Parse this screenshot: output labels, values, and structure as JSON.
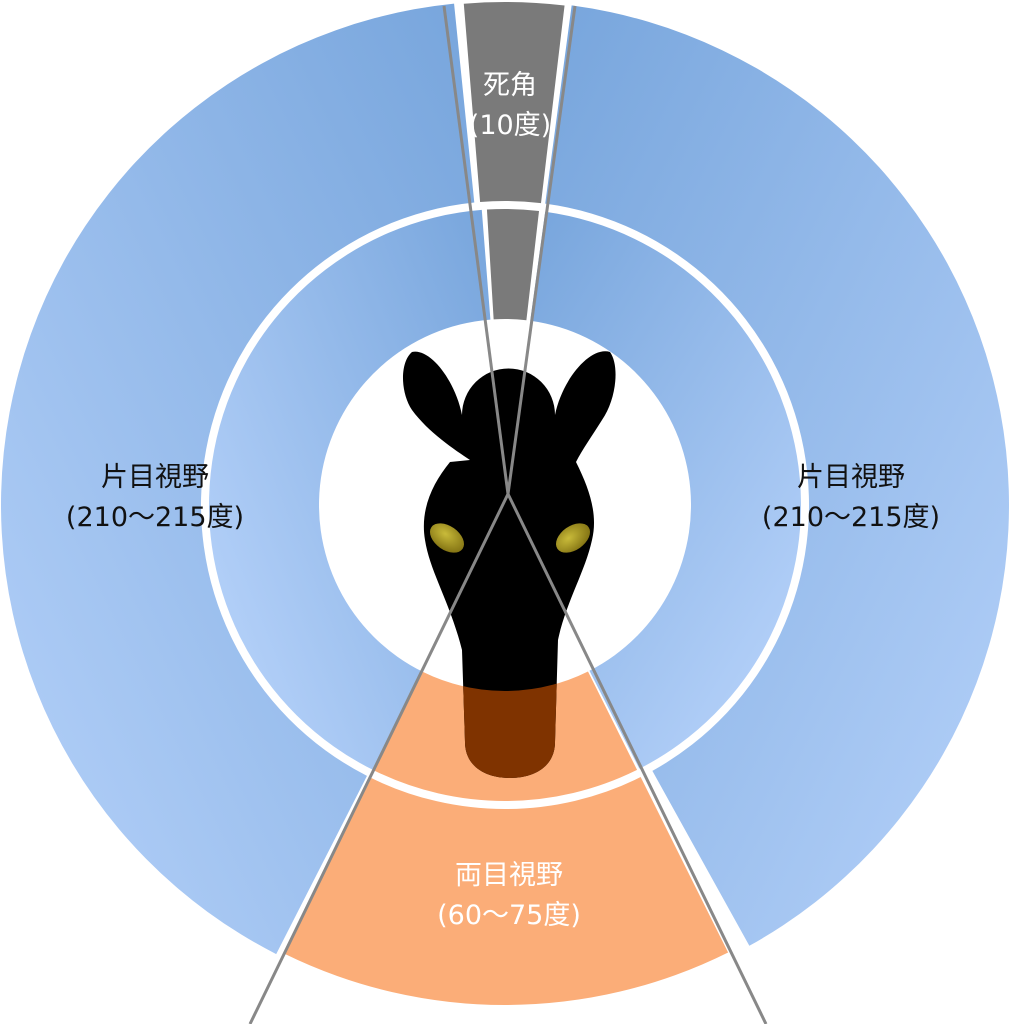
{
  "labels": {
    "blind_spot": {
      "title": "死角",
      "value": "(10度)"
    },
    "monocular_left": {
      "title": "片目視野",
      "value": "(210〜215度)"
    },
    "monocular_right": {
      "title": "片目視野",
      "value": "(210〜215度)"
    },
    "binocular": {
      "title": "両目視野",
      "value": "(60〜75度)"
    }
  },
  "colors": {
    "monocular_dark": "#77a5dc",
    "monocular_light": "#b6d2fa",
    "binocular": "#fbad78",
    "blind_spot": "#7a7a7a",
    "horse": "#000000",
    "horse_muzzle_overlap": "#7f3300",
    "eye": "#b3a52c",
    "sight_line": "#888888"
  },
  "icons": {
    "horse": "horse-head-icon"
  }
}
